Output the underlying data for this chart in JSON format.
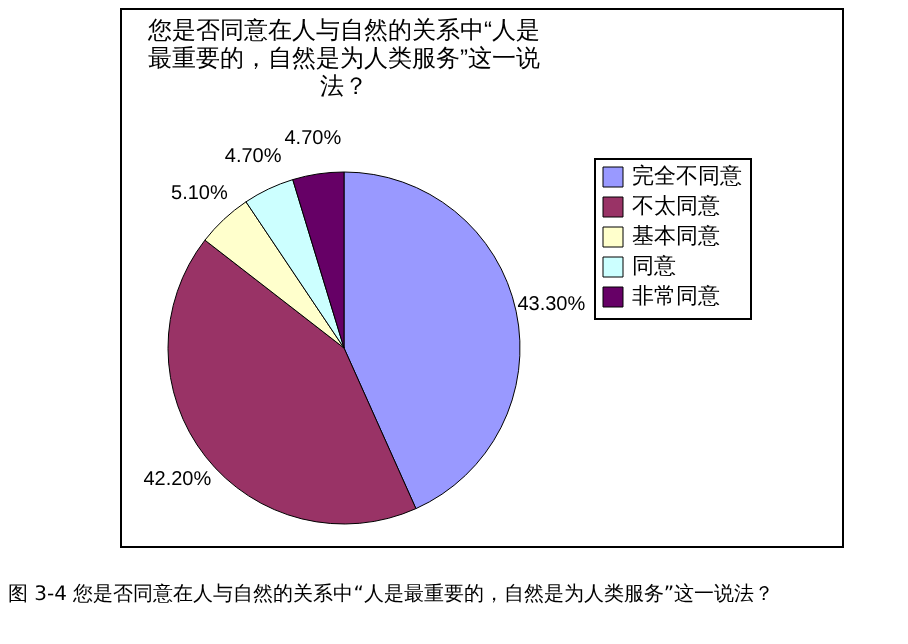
{
  "chart_data": {
    "type": "pie",
    "title": "您是否同意在人与自然的关系中“人是最重要的，自然是为人类服务”这一说法？",
    "categories": [
      "完全不同意",
      "不太同意",
      "基本同意",
      "同意",
      "非常同意"
    ],
    "values": [
      43.3,
      42.2,
      5.1,
      4.7,
      4.7
    ],
    "value_labels": [
      "43.30%",
      "42.20%",
      "5.10%",
      "4.70%",
      "4.70%"
    ],
    "colors": [
      "#9999ff",
      "#993366",
      "#ffffcc",
      "#ccffff",
      "#660066"
    ],
    "legend": "right",
    "annotations": [
      "图 3-4 您是否同意在人与自然的关系中“人是最重要的，自然是为人类服务”这一说法？"
    ]
  }
}
